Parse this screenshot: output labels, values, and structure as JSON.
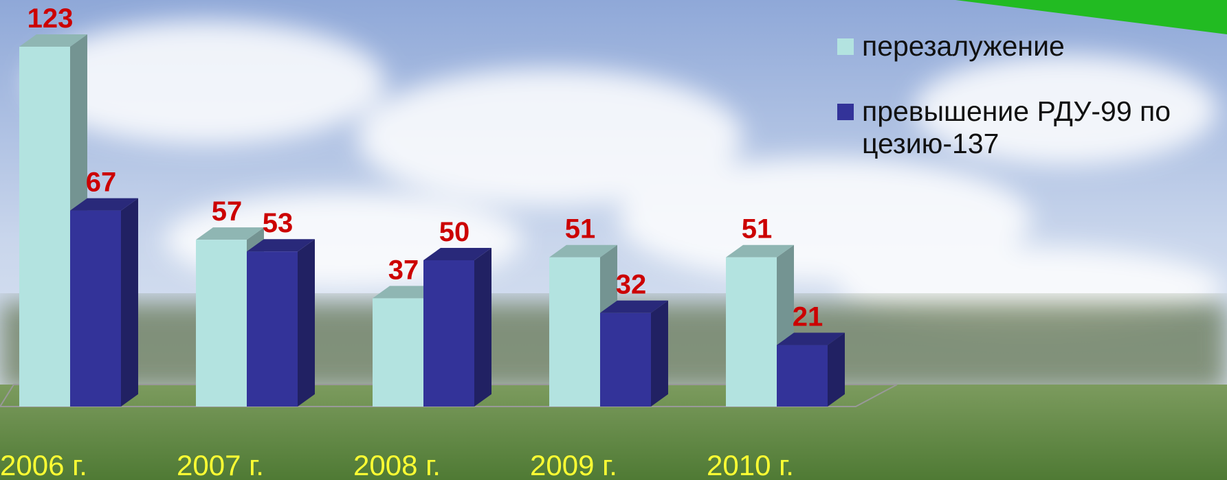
{
  "chart_data": {
    "type": "bar3d",
    "categories": [
      "2006 г.",
      "2007 г.",
      "2008 г.",
      "2009 г.",
      "2010 г."
    ],
    "series": [
      {
        "name": "перезалужение",
        "color": "#b3e3e0",
        "values": [
          123,
          57,
          37,
          51,
          51
        ]
      },
      {
        "name": "превышение РДУ-99 по цезию-137",
        "color": "#333399",
        "values": [
          67,
          53,
          50,
          32,
          21
        ]
      }
    ],
    "label_color": "#cc0000",
    "category_color": "#ffff33"
  }
}
